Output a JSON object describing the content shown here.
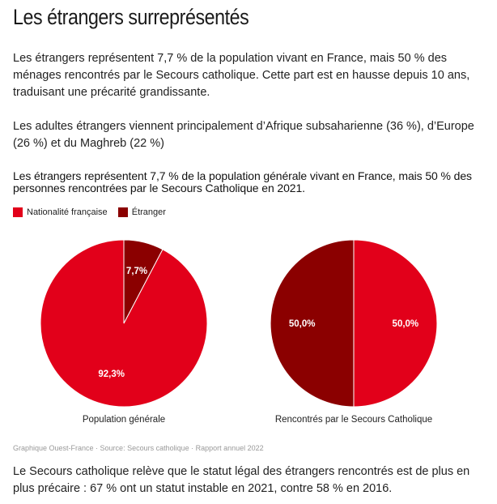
{
  "article": {
    "heading": "Les étrangers surreprésentés",
    "paragraphs": [
      "Les étrangers représentent 7,7 % de la population vivant en France, mais 50 % des ménages rencontrés par le Secours catholique. Cette part est en hausse depuis 10 ans, traduisant une précarité grandissante.",
      "Les adultes étrangers viennent principalement d’Afrique subsaharienne (36 %), d’Europe (26 %) et du Maghreb (22 %)",
      "Le Secours catholique relève que le statut légal des étrangers rencontrés est de plus en plus précaire : 67 % ont un statut instable en 2021, contre 58 % en 2016."
    ],
    "source_partial": "Graphique Ouest-France · Source: Secours catholique · Rapport annuel 2022"
  },
  "chart_data": {
    "type": "pie",
    "title": "Les étrangers représentent 7,7 % de la population générale vivant en France, mais 50 % des personnes rencontrées par le Secours Catholique en 2021.",
    "legend": [
      {
        "label": "Nationalité française",
        "color": "#e2001a"
      },
      {
        "label": "Étranger",
        "color": "#8b0000"
      }
    ],
    "legend_placement": "top-left",
    "charts": [
      {
        "label": "Population générale",
        "slices": [
          {
            "name": "Nationalité française",
            "value": 92.3,
            "label": "92,3%",
            "color": "#e2001a"
          },
          {
            "name": "Étranger",
            "value": 7.7,
            "label": "7,7%",
            "color": "#8b0000"
          }
        ]
      },
      {
        "label": "Rencontrés par le Secours Catholique",
        "slices": [
          {
            "name": "Nationalité française",
            "value": 50.0,
            "label": "50,0%",
            "color": "#e2001a"
          },
          {
            "name": "Étranger",
            "value": 50.0,
            "label": "50,0%",
            "color": "#8b0000"
          }
        ]
      }
    ]
  }
}
